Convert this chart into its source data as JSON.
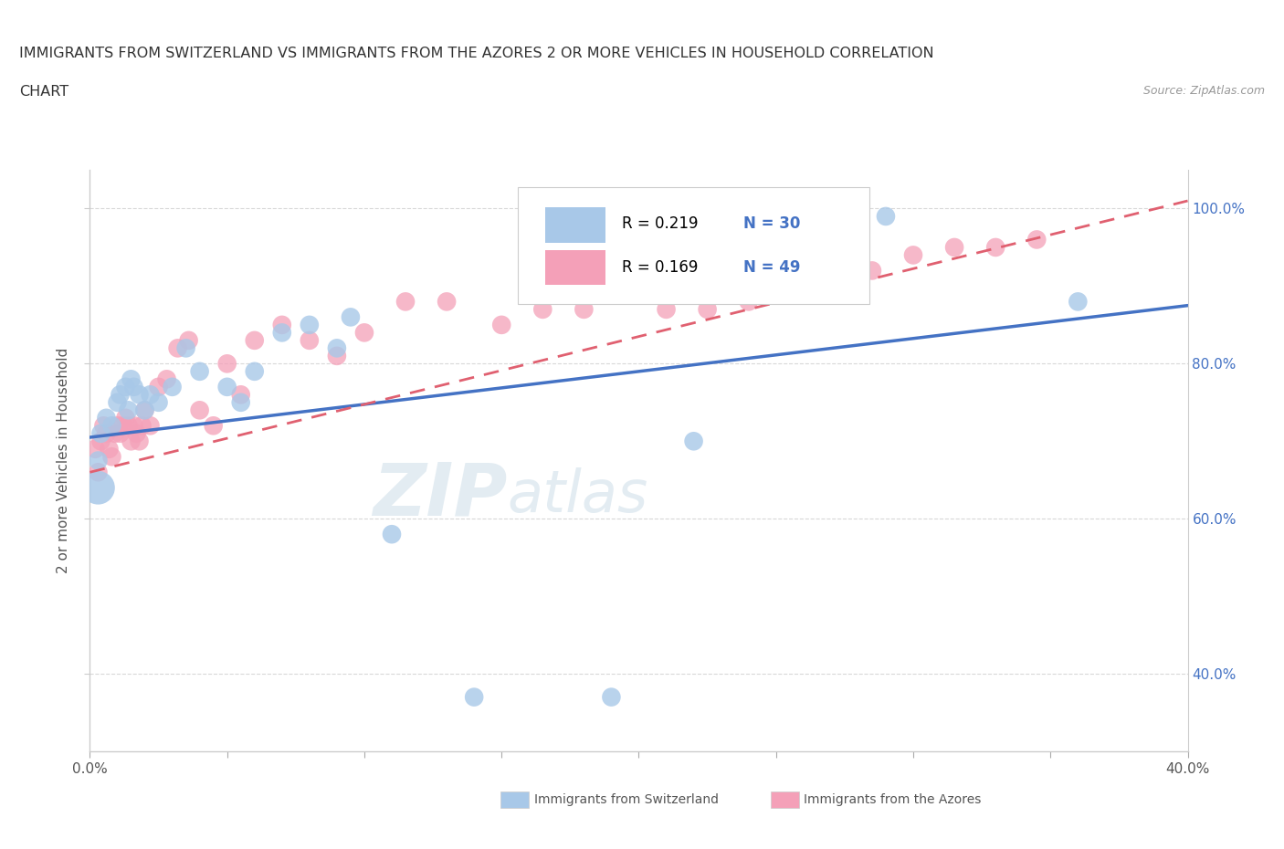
{
  "title_line1": "IMMIGRANTS FROM SWITZERLAND VS IMMIGRANTS FROM THE AZORES 2 OR MORE VEHICLES IN HOUSEHOLD CORRELATION",
  "title_line2": "CHART",
  "source": "Source: ZipAtlas.com",
  "ylabel": "2 or more Vehicles in Household",
  "xlim": [
    0.0,
    0.4
  ],
  "ylim": [
    0.3,
    1.05
  ],
  "color_swiss": "#a8c8e8",
  "color_azores": "#f4a0b8",
  "line_color_swiss": "#4472c4",
  "line_color_azores": "#e06070",
  "watermark_zip": "ZIP",
  "watermark_atlas": "atlas",
  "background_color": "#ffffff",
  "grid_color": "#d8d8d8",
  "title_color": "#333333",
  "axis_color": "#555555",
  "source_color": "#999999",
  "right_axis_color": "#4472c4",
  "swiss_x": [
    0.003,
    0.004,
    0.006,
    0.008,
    0.01,
    0.011,
    0.013,
    0.014,
    0.015,
    0.016,
    0.018,
    0.02,
    0.022,
    0.025,
    0.03,
    0.035,
    0.04,
    0.05,
    0.055,
    0.06,
    0.07,
    0.08,
    0.09,
    0.095,
    0.11,
    0.14,
    0.19,
    0.22,
    0.29,
    0.36
  ],
  "swiss_y": [
    0.675,
    0.71,
    0.73,
    0.72,
    0.75,
    0.76,
    0.77,
    0.74,
    0.78,
    0.77,
    0.76,
    0.74,
    0.76,
    0.75,
    0.77,
    0.82,
    0.79,
    0.77,
    0.75,
    0.79,
    0.84,
    0.85,
    0.82,
    0.86,
    0.58,
    0.37,
    0.37,
    0.7,
    0.99,
    0.88
  ],
  "azores_x": [
    0.002,
    0.003,
    0.004,
    0.005,
    0.006,
    0.007,
    0.008,
    0.009,
    0.01,
    0.011,
    0.012,
    0.013,
    0.014,
    0.015,
    0.016,
    0.017,
    0.018,
    0.019,
    0.02,
    0.022,
    0.025,
    0.028,
    0.032,
    0.036,
    0.04,
    0.045,
    0.05,
    0.055,
    0.06,
    0.07,
    0.08,
    0.09,
    0.1,
    0.115,
    0.13,
    0.15,
    0.165,
    0.18,
    0.195,
    0.21,
    0.225,
    0.24,
    0.255,
    0.27,
    0.285,
    0.3,
    0.315,
    0.33,
    0.345
  ],
  "azores_y": [
    0.69,
    0.66,
    0.7,
    0.72,
    0.71,
    0.69,
    0.68,
    0.71,
    0.72,
    0.71,
    0.72,
    0.73,
    0.72,
    0.7,
    0.72,
    0.71,
    0.7,
    0.72,
    0.74,
    0.72,
    0.77,
    0.78,
    0.82,
    0.83,
    0.74,
    0.72,
    0.8,
    0.76,
    0.83,
    0.85,
    0.83,
    0.81,
    0.84,
    0.88,
    0.88,
    0.85,
    0.87,
    0.87,
    0.89,
    0.87,
    0.87,
    0.88,
    0.9,
    0.9,
    0.92,
    0.94,
    0.95,
    0.95,
    0.96
  ],
  "swiss_line_x0": 0.0,
  "swiss_line_y0": 0.705,
  "swiss_line_x1": 0.4,
  "swiss_line_y1": 0.875,
  "azores_line_x0": 0.0,
  "azores_line_y0": 0.66,
  "azores_line_x1": 0.4,
  "azores_line_y1": 1.01
}
